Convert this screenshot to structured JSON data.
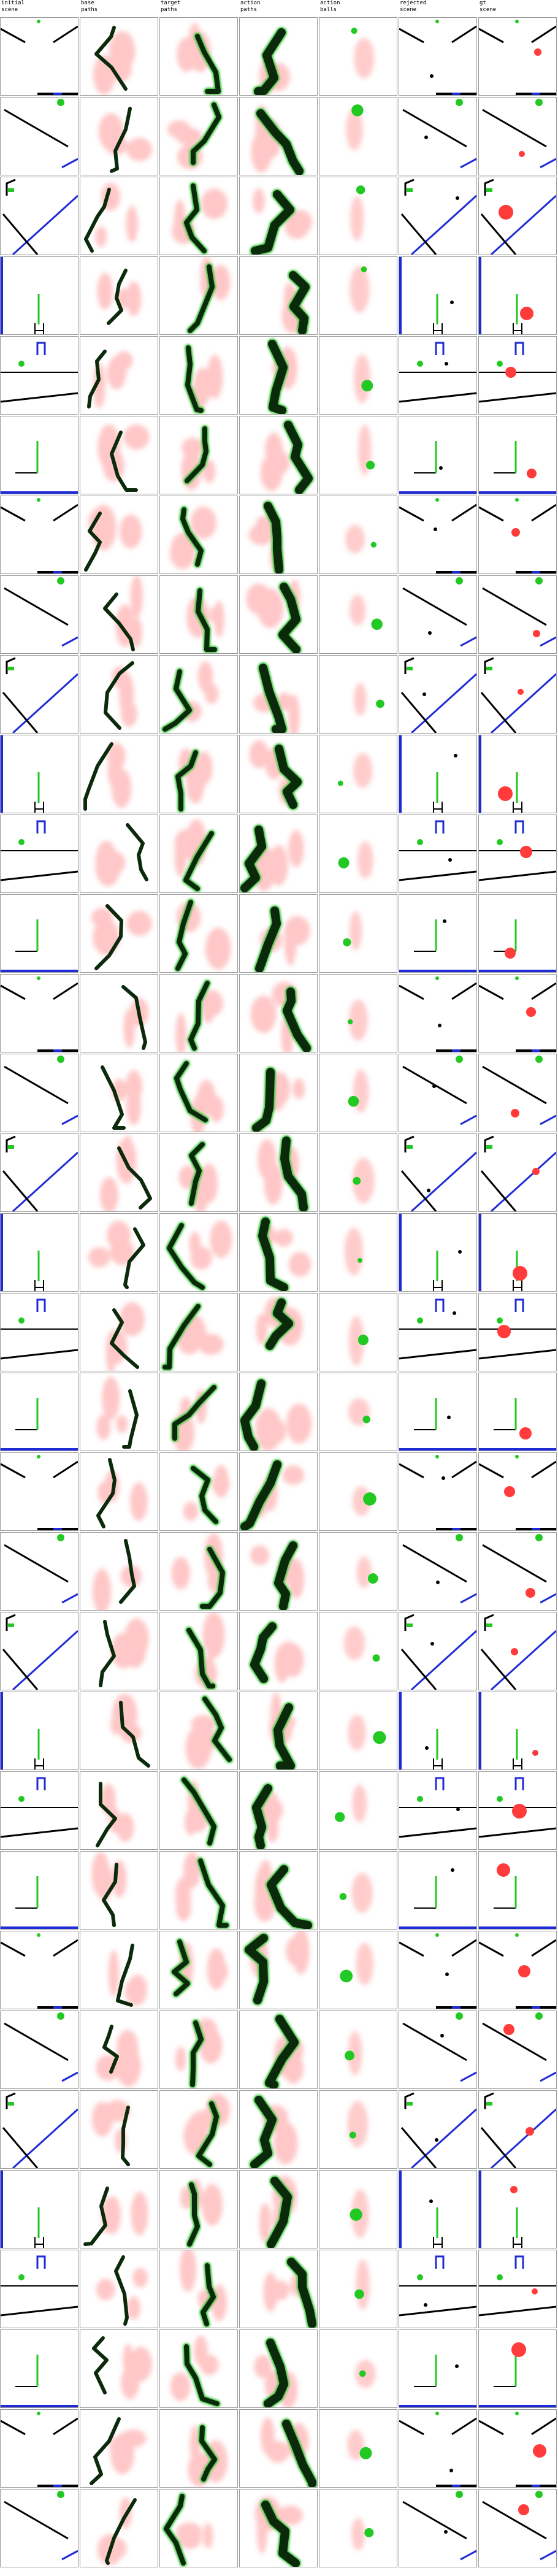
{
  "headers": [
    {
      "line1": "initial",
      "line2": "scene"
    },
    {
      "line1": "base",
      "line2": "paths"
    },
    {
      "line1": "target",
      "line2": "paths"
    },
    {
      "line1": "action",
      "line2": "paths"
    },
    {
      "line1": "action",
      "line2": "balls"
    },
    {
      "line1": "rejected",
      "line2": "scene"
    },
    {
      "line1": "gt",
      "line2": "scene"
    }
  ],
  "colors": {
    "wall": "#000000",
    "goal": "#1f2bd6",
    "green": "#22c922",
    "red": "#ff3b3b",
    "path_dark": "#0b2a0b",
    "heat_red": "#ff9a9a",
    "heat_green": "#37c837"
  },
  "row_count": 32
}
